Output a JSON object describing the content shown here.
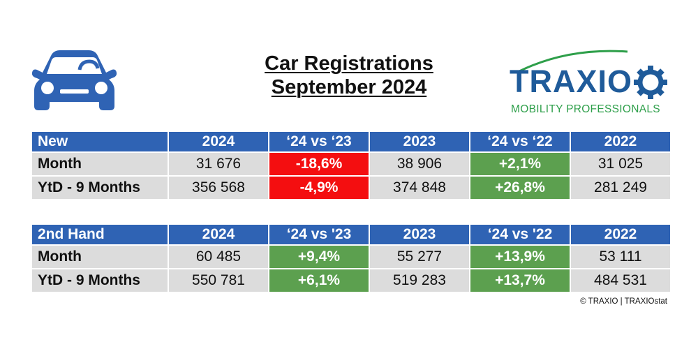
{
  "title": {
    "line1": "Car Registrations",
    "line2": "September 2024"
  },
  "logo": {
    "brand": "TRAXIO",
    "tagline": "MOBILITY PROFESSIONALS",
    "brand_color": "#1f5b9a",
    "tag_color": "#2e9f4a"
  },
  "icons": {
    "car": "car-icon"
  },
  "colors": {
    "header": "#2f63b4",
    "cell": "#dcdcdc",
    "negative": "#f40e10",
    "positive": "#5ca04f"
  },
  "new_table": {
    "headers": [
      "New",
      "2024",
      "‘24 vs ‘23",
      "2023",
      "‘24 vs ‘22",
      "2022"
    ],
    "rows": [
      {
        "label": "Month",
        "cells": [
          "31 676",
          "-18,6%",
          "38 906",
          "+2,1%",
          "31 025"
        ]
      },
      {
        "label": "YtD - 9 Months",
        "cells": [
          "356 568",
          "-4,9%",
          "374 848",
          "+26,8%",
          "281 249"
        ]
      }
    ]
  },
  "used_table": {
    "headers": [
      "2nd Hand",
      "2024",
      "‘24 vs '23",
      "2023",
      "‘24 vs '22",
      "2022"
    ],
    "rows": [
      {
        "label": "Month",
        "cells": [
          "60 485",
          "+9,4%",
          "55 277",
          "+13,9%",
          "53 111"
        ]
      },
      {
        "label": "YtD - 9 Months",
        "cells": [
          "550 781",
          "+6,1%",
          "519 283",
          "+13,7%",
          "484 531"
        ]
      }
    ]
  },
  "copyright": "© TRAXIO | TRAXIOstat"
}
